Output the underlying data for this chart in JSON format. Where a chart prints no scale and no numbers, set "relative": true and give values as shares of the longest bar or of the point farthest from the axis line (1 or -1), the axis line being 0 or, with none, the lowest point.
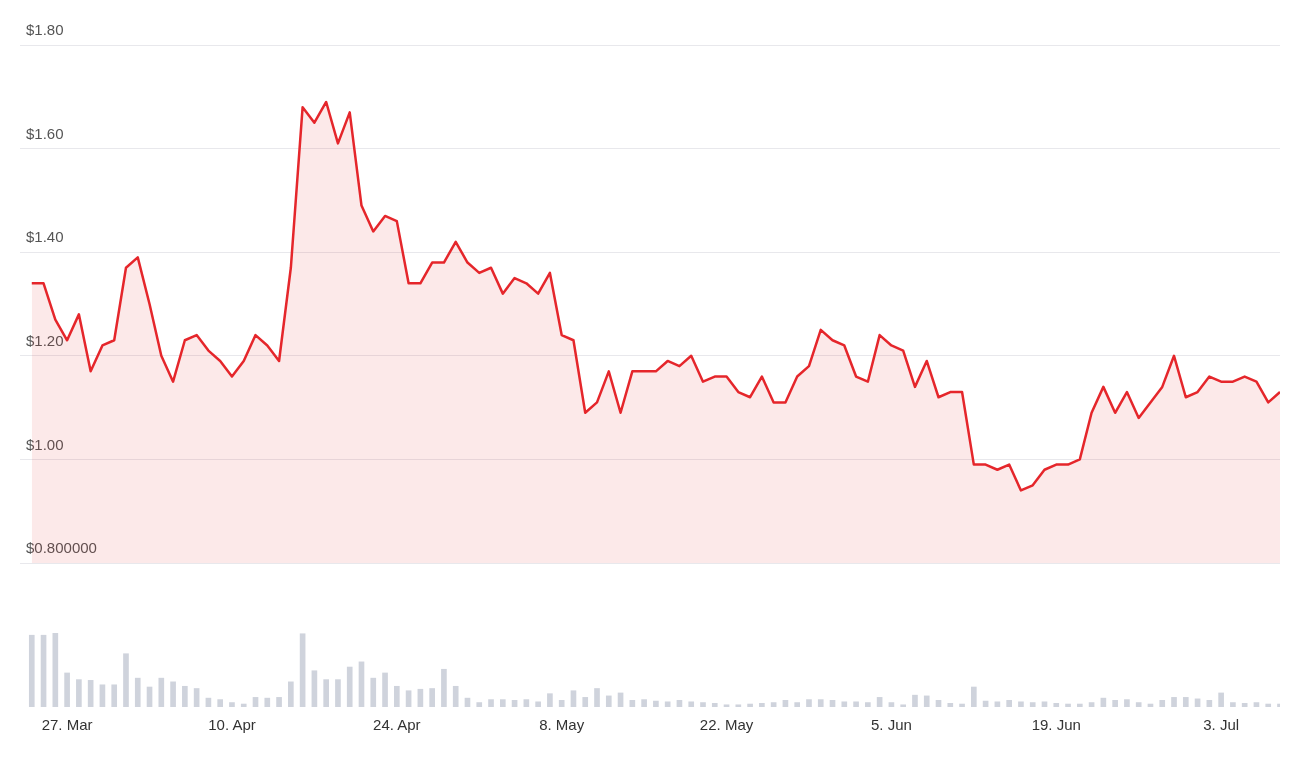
{
  "chart_data": [
    {
      "type": "area",
      "x": [
        "--03-24",
        "--03-25",
        "--03-26",
        "--03-27",
        "--03-28",
        "--03-29",
        "--03-30",
        "--03-31",
        "--04-01",
        "--04-02",
        "--04-03",
        "--04-04",
        "--04-05",
        "--04-06",
        "--04-07",
        "--04-08",
        "--04-09",
        "--04-10",
        "--04-11",
        "--04-12",
        "--04-13",
        "--04-14",
        "--04-15",
        "--04-16",
        "--04-17",
        "--04-18",
        "--04-19",
        "--04-20",
        "--04-21",
        "--04-22",
        "--04-23",
        "--04-24",
        "--04-25",
        "--04-26",
        "--04-27",
        "--04-28",
        "--04-29",
        "--04-30",
        "--05-01",
        "--05-02",
        "--05-03",
        "--05-04",
        "--05-05",
        "--05-06",
        "--05-07",
        "--05-08",
        "--05-09",
        "--05-10",
        "--05-11",
        "--05-12",
        "--05-13",
        "--05-14",
        "--05-15",
        "--05-16",
        "--05-17",
        "--05-18",
        "--05-19",
        "--05-20",
        "--05-21",
        "--05-22",
        "--05-23",
        "--05-24",
        "--05-25",
        "--05-26",
        "--05-27",
        "--05-28",
        "--05-29",
        "--05-30",
        "--05-31",
        "--06-01",
        "--06-02",
        "--06-03",
        "--06-04",
        "--06-05",
        "--06-06",
        "--06-07",
        "--06-08",
        "--06-09",
        "--06-10",
        "--06-11",
        "--06-12",
        "--06-13",
        "--06-14",
        "--06-15",
        "--06-16",
        "--06-17",
        "--06-18",
        "--06-19",
        "--06-20",
        "--06-21",
        "--06-22",
        "--06-23",
        "--06-24",
        "--06-25",
        "--06-26",
        "--06-27",
        "--06-28",
        "--06-29",
        "--06-30",
        "--07-01",
        "--07-02",
        "--07-03",
        "--07-04",
        "--07-05",
        "--07-06",
        "--07-07",
        "--07-08"
      ],
      "series": [
        {
          "color": "#e5262b",
          "values": [
            1.34,
            1.34,
            1.27,
            1.23,
            1.28,
            1.17,
            1.22,
            1.23,
            1.37,
            1.39,
            1.3,
            1.2,
            1.15,
            1.23,
            1.24,
            1.21,
            1.19,
            1.16,
            1.19,
            1.24,
            1.22,
            1.19,
            1.37,
            1.68,
            1.65,
            1.69,
            1.61,
            1.67,
            1.49,
            1.44,
            1.47,
            1.46,
            1.34,
            1.34,
            1.38,
            1.38,
            1.42,
            1.38,
            1.36,
            1.37,
            1.32,
            1.35,
            1.34,
            1.32,
            1.36,
            1.24,
            1.23,
            1.09,
            1.11,
            1.17,
            1.09,
            1.17,
            1.17,
            1.17,
            1.19,
            1.18,
            1.2,
            1.15,
            1.16,
            1.16,
            1.13,
            1.12,
            1.16,
            1.11,
            1.11,
            1.16,
            1.18,
            1.25,
            1.23,
            1.22,
            1.16,
            1.15,
            1.24,
            1.22,
            1.21,
            1.14,
            1.19,
            1.12,
            1.13,
            1.13,
            0.99,
            0.99,
            0.98,
            0.99,
            0.94,
            0.95,
            0.98,
            0.99,
            0.99,
            1.0,
            1.09,
            1.14,
            1.09,
            1.13,
            1.08,
            1.11,
            1.14,
            1.2,
            1.12,
            1.13,
            1.16,
            1.15,
            1.15,
            1.16,
            1.15,
            1.11,
            1.13
          ]
        }
      ],
      "xlim": [
        "--03-23",
        "--07-08"
      ],
      "ylim": [
        0.8,
        1.8
      ],
      "yticks": [
        {
          "value": 0.8,
          "label": "$0.800000"
        },
        {
          "value": 1.0,
          "label": "$1.00"
        },
        {
          "value": 1.2,
          "label": "$1.20"
        },
        {
          "value": 1.4,
          "label": "$1.40"
        },
        {
          "value": 1.6,
          "label": "$1.60"
        },
        {
          "value": 1.8,
          "label": "$1.80"
        }
      ],
      "grid": "y",
      "legend": false,
      "tick_labels": "y"
    },
    {
      "type": "bar",
      "relative": true,
      "x": [
        "--03-24",
        "--03-25",
        "--03-26",
        "--03-27",
        "--03-28",
        "--03-29",
        "--03-30",
        "--03-31",
        "--04-01",
        "--04-02",
        "--04-03",
        "--04-04",
        "--04-05",
        "--04-06",
        "--04-07",
        "--04-08",
        "--04-09",
        "--04-10",
        "--04-11",
        "--04-12",
        "--04-13",
        "--04-14",
        "--04-15",
        "--04-16",
        "--04-17",
        "--04-18",
        "--04-19",
        "--04-20",
        "--04-21",
        "--04-22",
        "--04-23",
        "--04-24",
        "--04-25",
        "--04-26",
        "--04-27",
        "--04-28",
        "--04-29",
        "--04-30",
        "--05-01",
        "--05-02",
        "--05-03",
        "--05-04",
        "--05-05",
        "--05-06",
        "--05-07",
        "--05-08",
        "--05-09",
        "--05-10",
        "--05-11",
        "--05-12",
        "--05-13",
        "--05-14",
        "--05-15",
        "--05-16",
        "--05-17",
        "--05-18",
        "--05-19",
        "--05-20",
        "--05-21",
        "--05-22",
        "--05-23",
        "--05-24",
        "--05-25",
        "--05-26",
        "--05-27",
        "--05-28",
        "--05-29",
        "--05-30",
        "--05-31",
        "--06-01",
        "--06-02",
        "--06-03",
        "--06-04",
        "--06-05",
        "--06-06",
        "--06-07",
        "--06-08",
        "--06-09",
        "--06-10",
        "--06-11",
        "--06-12",
        "--06-13",
        "--06-14",
        "--06-15",
        "--06-16",
        "--06-17",
        "--06-18",
        "--06-19",
        "--06-20",
        "--06-21",
        "--06-22",
        "--06-23",
        "--06-24",
        "--06-25",
        "--06-26",
        "--06-27",
        "--06-28",
        "--06-29",
        "--06-30",
        "--07-01",
        "--07-02",
        "--07-03",
        "--07-04",
        "--07-05",
        "--07-06",
        "--07-07",
        "--07-08"
      ],
      "series": [
        {
          "color": "#cfd3dc",
          "values": [
            0.97,
            0.97,
            1,
            0.46,
            0.37,
            0.36,
            0.3,
            0.3,
            0.72,
            0.39,
            0.27,
            0.39,
            0.34,
            0.28,
            0.25,
            0.12,
            0.1,
            0.06,
            0.04,
            0.13,
            0.12,
            0.13,
            0.34,
            0.99,
            0.49,
            0.37,
            0.37,
            0.54,
            0.61,
            0.39,
            0.46,
            0.28,
            0.22,
            0.24,
            0.25,
            0.51,
            0.28,
            0.12,
            0.06,
            0.1,
            0.1,
            0.09,
            0.1,
            0.07,
            0.18,
            0.09,
            0.22,
            0.13,
            0.25,
            0.15,
            0.19,
            0.09,
            0.1,
            0.08,
            0.07,
            0.09,
            0.07,
            0.06,
            0.05,
            0.03,
            0.03,
            0.04,
            0.05,
            0.06,
            0.09,
            0.06,
            0.1,
            0.1,
            0.09,
            0.07,
            0.07,
            0.06,
            0.13,
            0.06,
            0.03,
            0.16,
            0.15,
            0.09,
            0.05,
            0.04,
            0.27,
            0.08,
            0.07,
            0.09,
            0.07,
            0.06,
            0.07,
            0.05,
            0.04,
            0.04,
            0.06,
            0.12,
            0.09,
            0.1,
            0.06,
            0.04,
            0.09,
            0.13,
            0.13,
            0.11,
            0.09,
            0.19,
            0.06,
            0.05,
            0.06,
            0.04,
            0.04
          ]
        }
      ],
      "xlim": [
        "--03-23",
        "--07-08"
      ],
      "xticks": [
        {
          "value": "--03-27",
          "label": "27. Mar"
        },
        {
          "value": "--04-10",
          "label": "10. Apr"
        },
        {
          "value": "--04-24",
          "label": "24. Apr"
        },
        {
          "value": "--05-08",
          "label": "8. May"
        },
        {
          "value": "--05-22",
          "label": "22. May"
        },
        {
          "value": "--06-05",
          "label": "5. Jun"
        },
        {
          "value": "--06-19",
          "label": "19. Jun"
        },
        {
          "value": "--07-03",
          "label": "3. Jul"
        }
      ],
      "legend": false,
      "tick_labels": "x"
    }
  ]
}
